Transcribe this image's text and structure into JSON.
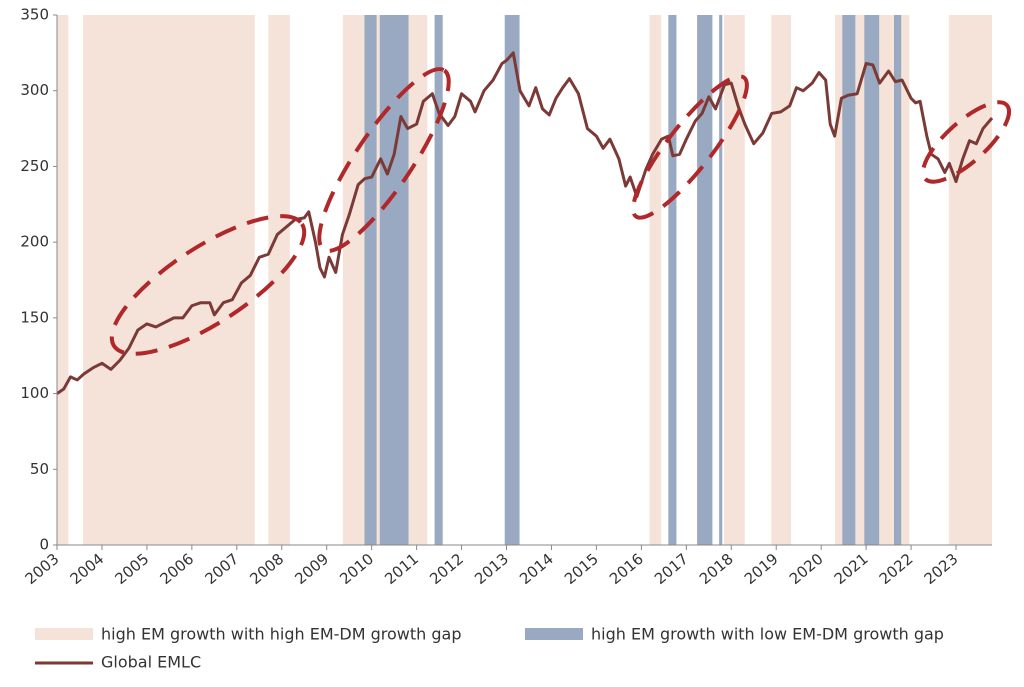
{
  "chart_data": {
    "type": "line",
    "xlim": [
      2003,
      2023.8
    ],
    "xticks": [
      2003,
      2004,
      2005,
      2006,
      2007,
      2008,
      2009,
      2010,
      2011,
      2012,
      2013,
      2014,
      2015,
      2016,
      2017,
      2018,
      2019,
      2020,
      2021,
      2022,
      2023
    ],
    "ylim": [
      0,
      350
    ],
    "yticks": [
      0,
      50,
      100,
      150,
      200,
      250,
      300,
      350
    ],
    "bands": [
      {
        "name": "high EM growth with high EM-DM growth gap",
        "color": "#f5e3da",
        "ranges": [
          [
            2003.0,
            2003.25
          ],
          [
            2003.58,
            2007.4
          ],
          [
            2007.7,
            2008.18
          ],
          [
            2009.36,
            2011.24
          ],
          [
            2016.18,
            2016.44
          ],
          [
            2017.84,
            2018.3
          ],
          [
            2018.89,
            2019.33
          ],
          [
            2020.31,
            2021.96
          ],
          [
            2022.84,
            2023.8
          ]
        ]
      },
      {
        "name": "high EM growth with low EM-DM growth gap",
        "color": "#98a9c1",
        "ranges": [
          [
            2009.84,
            2010.11
          ],
          [
            2010.18,
            2010.82
          ],
          [
            2011.4,
            2011.58
          ],
          [
            2012.96,
            2013.29
          ],
          [
            2016.6,
            2016.78
          ],
          [
            2017.24,
            2017.58
          ],
          [
            2017.73,
            2017.8
          ],
          [
            2020.47,
            2020.76
          ],
          [
            2020.96,
            2021.29
          ],
          [
            2021.62,
            2021.78
          ]
        ]
      }
    ],
    "series": [
      {
        "name": "Global EMLC",
        "color": "#7b3a36",
        "x": [
          2003.0,
          2003.15,
          2003.3,
          2003.45,
          2003.6,
          2003.8,
          2004.0,
          2004.2,
          2004.4,
          2004.6,
          2004.8,
          2005.0,
          2005.2,
          2005.4,
          2005.6,
          2005.8,
          2006.0,
          2006.2,
          2006.4,
          2006.5,
          2006.7,
          2006.9,
          2007.1,
          2007.3,
          2007.5,
          2007.7,
          2007.9,
          2008.1,
          2008.3,
          2008.5,
          2008.6,
          2008.75,
          2008.85,
          2008.95,
          2009.05,
          2009.2,
          2009.35,
          2009.5,
          2009.7,
          2009.85,
          2010.0,
          2010.2,
          2010.35,
          2010.5,
          2010.65,
          2010.8,
          2011.0,
          2011.15,
          2011.35,
          2011.5,
          2011.7,
          2011.85,
          2012.0,
          2012.2,
          2012.3,
          2012.5,
          2012.7,
          2012.9,
          2013.0,
          2013.15,
          2013.3,
          2013.5,
          2013.65,
          2013.8,
          2013.95,
          2014.1,
          2014.25,
          2014.4,
          2014.6,
          2014.8,
          2015.0,
          2015.15,
          2015.3,
          2015.5,
          2015.65,
          2015.75,
          2015.9,
          2016.1,
          2016.25,
          2016.45,
          2016.6,
          2016.7,
          2016.85,
          2017.0,
          2017.2,
          2017.35,
          2017.5,
          2017.65,
          2017.85,
          2018.0,
          2018.15,
          2018.3,
          2018.5,
          2018.7,
          2018.9,
          2019.1,
          2019.3,
          2019.45,
          2019.6,
          2019.8,
          2019.95,
          2020.1,
          2020.2,
          2020.3,
          2020.45,
          2020.6,
          2020.8,
          2021.0,
          2021.15,
          2021.3,
          2021.5,
          2021.65,
          2021.8,
          2022.0,
          2022.1,
          2022.2,
          2022.35,
          2022.45,
          2022.6,
          2022.75,
          2022.85,
          2023.0,
          2023.15,
          2023.3,
          2023.45,
          2023.6,
          2023.8
        ],
        "values": [
          100,
          103,
          111,
          109,
          113,
          117,
          120,
          116,
          122,
          130,
          142,
          146,
          144,
          147,
          150,
          150,
          158,
          160,
          160,
          152,
          160,
          162,
          173,
          178,
          190,
          192,
          205,
          210,
          215,
          216,
          220,
          200,
          183,
          177,
          190,
          180,
          205,
          218,
          238,
          242,
          243,
          255,
          245,
          258,
          283,
          275,
          278,
          293,
          298,
          285,
          277,
          283,
          298,
          293,
          286,
          300,
          307,
          318,
          320,
          325,
          300,
          290,
          302,
          288,
          284,
          295,
          302,
          308,
          298,
          275,
          270,
          262,
          268,
          255,
          237,
          243,
          230,
          248,
          258,
          268,
          270,
          257,
          258,
          268,
          280,
          285,
          296,
          288,
          304,
          305,
          290,
          278,
          265,
          272,
          285,
          286,
          290,
          302,
          300,
          305,
          312,
          307,
          278,
          270,
          295,
          297,
          298,
          318,
          317,
          305,
          313,
          306,
          307,
          295,
          292,
          293,
          270,
          258,
          255,
          246,
          252,
          240,
          255,
          267,
          265,
          275,
          282
        ]
      }
    ]
  }
}
